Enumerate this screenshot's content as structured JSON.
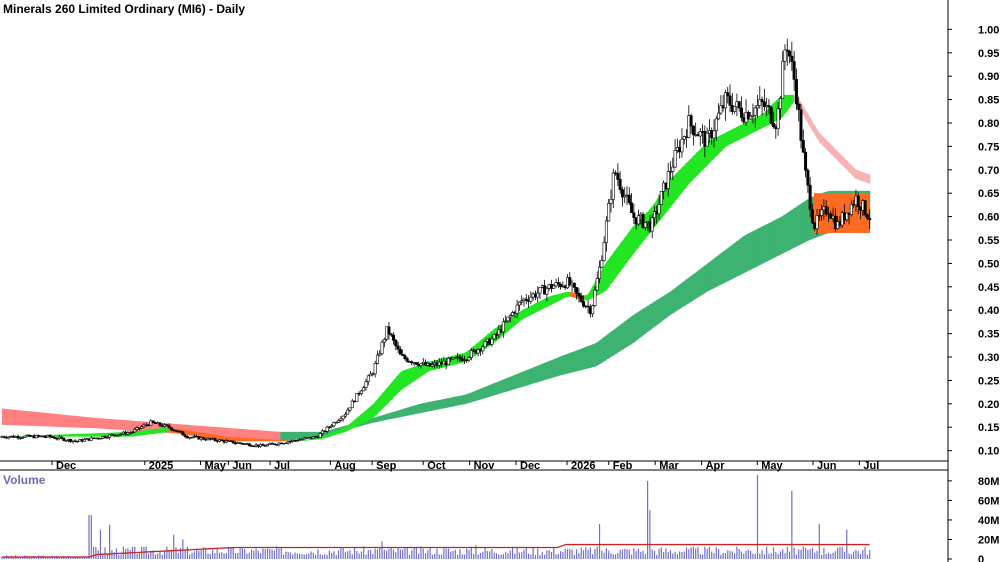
{
  "colors": {
    "up_band": "#22e622",
    "down_band": "#ff6a22",
    "long_up_band": "#3cb371",
    "long_down_band": "#ff8080",
    "long_down_band_light": "#f6b4b4",
    "volume_bar": "#7070c8",
    "volume_ma": "#cc2222",
    "volume_label": "#6b6bb8",
    "axis": "#000000"
  },
  "chart_data": {
    "type": "candlestick",
    "title": "Minerals 260 Limited Ordinary (MI6) - Daily",
    "y_axis": {
      "side": "right",
      "ticks": [
        "1.00",
        "0.95",
        "0.90",
        "0.85",
        "0.80",
        "0.75",
        "0.70",
        "0.65",
        "0.60",
        "0.55",
        "0.50",
        "0.45",
        "0.40",
        "0.35",
        "0.30",
        "0.25",
        "0.20",
        "0.15",
        "0.10"
      ],
      "ylim": [
        0.08,
        1.02
      ]
    },
    "x_axis": {
      "labels": [
        "Dec",
        "2025",
        "May",
        "Jun",
        "Jul",
        "Aug",
        "Sep",
        "Oct",
        "Nov",
        "Dec",
        "2026",
        "Feb",
        "Mar",
        "Apr",
        "May",
        "Jun",
        "Jul"
      ],
      "label_index": [
        0,
        0.1,
        0.16,
        0.19,
        0.235,
        0.3,
        0.345,
        0.4,
        0.45,
        0.5,
        0.555,
        0.6,
        0.65,
        0.7,
        0.76,
        0.82,
        0.87
      ]
    },
    "price_path": [
      [
        0,
        0.13
      ],
      [
        0.05,
        0.13
      ],
      [
        0.08,
        0.12
      ],
      [
        0.11,
        0.13
      ],
      [
        0.14,
        0.14
      ],
      [
        0.16,
        0.16
      ],
      [
        0.18,
        0.15
      ],
      [
        0.2,
        0.13
      ],
      [
        0.24,
        0.12
      ],
      [
        0.28,
        0.11
      ],
      [
        0.31,
        0.12
      ],
      [
        0.34,
        0.13
      ],
      [
        0.37,
        0.18
      ],
      [
        0.4,
        0.27
      ],
      [
        0.415,
        0.36
      ],
      [
        0.43,
        0.3
      ],
      [
        0.46,
        0.28
      ],
      [
        0.5,
        0.3
      ],
      [
        0.53,
        0.34
      ],
      [
        0.56,
        0.42
      ],
      [
        0.59,
        0.45
      ],
      [
        0.61,
        0.46
      ],
      [
        0.62,
        0.43
      ],
      [
        0.635,
        0.4
      ],
      [
        0.645,
        0.5
      ],
      [
        0.66,
        0.7
      ],
      [
        0.68,
        0.6
      ],
      [
        0.7,
        0.58
      ],
      [
        0.72,
        0.7
      ],
      [
        0.74,
        0.8
      ],
      [
        0.76,
        0.76
      ],
      [
        0.78,
        0.85
      ],
      [
        0.8,
        0.82
      ],
      [
        0.82,
        0.84
      ],
      [
        0.835,
        0.8
      ],
      [
        0.845,
        0.98
      ],
      [
        0.855,
        0.88
      ],
      [
        0.865,
        0.7
      ],
      [
        0.875,
        0.58
      ],
      [
        0.89,
        0.62
      ],
      [
        0.9,
        0.58
      ],
      [
        0.92,
        0.64
      ],
      [
        0.935,
        0.6
      ]
    ],
    "short_ema_band": {
      "upper": [
        [
          0,
          0.13
        ],
        [
          0.14,
          0.14
        ],
        [
          0.18,
          0.15
        ],
        [
          0.24,
          0.13
        ],
        [
          0.32,
          0.12
        ],
        [
          0.345,
          0.13
        ],
        [
          0.37,
          0.15
        ],
        [
          0.4,
          0.2
        ],
        [
          0.43,
          0.27
        ],
        [
          0.46,
          0.29
        ],
        [
          0.5,
          0.31
        ],
        [
          0.53,
          0.36
        ],
        [
          0.56,
          0.4
        ],
        [
          0.59,
          0.43
        ],
        [
          0.61,
          0.44
        ],
        [
          0.63,
          0.43
        ],
        [
          0.65,
          0.5
        ],
        [
          0.68,
          0.58
        ],
        [
          0.7,
          0.62
        ],
        [
          0.72,
          0.68
        ],
        [
          0.74,
          0.72
        ],
        [
          0.76,
          0.76
        ],
        [
          0.78,
          0.78
        ],
        [
          0.8,
          0.8
        ],
        [
          0.82,
          0.82
        ],
        [
          0.84,
          0.86
        ],
        [
          0.855,
          0.86
        ],
        [
          0.865,
          0.83
        ],
        [
          0.88,
          0.78
        ],
        [
          0.9,
          0.74
        ],
        [
          0.92,
          0.7
        ],
        [
          0.935,
          0.69
        ]
      ],
      "lower": [
        [
          0,
          0.13
        ],
        [
          0.14,
          0.13
        ],
        [
          0.18,
          0.14
        ],
        [
          0.24,
          0.12
        ],
        [
          0.32,
          0.12
        ],
        [
          0.345,
          0.125
        ],
        [
          0.37,
          0.14
        ],
        [
          0.4,
          0.17
        ],
        [
          0.43,
          0.23
        ],
        [
          0.46,
          0.27
        ],
        [
          0.5,
          0.29
        ],
        [
          0.53,
          0.33
        ],
        [
          0.56,
          0.38
        ],
        [
          0.59,
          0.41
        ],
        [
          0.61,
          0.43
        ],
        [
          0.63,
          0.42
        ],
        [
          0.65,
          0.44
        ],
        [
          0.68,
          0.52
        ],
        [
          0.7,
          0.57
        ],
        [
          0.72,
          0.62
        ],
        [
          0.74,
          0.67
        ],
        [
          0.76,
          0.71
        ],
        [
          0.78,
          0.75
        ],
        [
          0.8,
          0.77
        ],
        [
          0.82,
          0.79
        ],
        [
          0.84,
          0.81
        ],
        [
          0.855,
          0.85
        ],
        [
          0.865,
          0.81
        ],
        [
          0.88,
          0.76
        ],
        [
          0.9,
          0.72
        ],
        [
          0.92,
          0.68
        ],
        [
          0.935,
          0.67
        ]
      ]
    },
    "long_ema_band": {
      "upper": [
        [
          0,
          0.19
        ],
        [
          0.1,
          0.17
        ],
        [
          0.2,
          0.155
        ],
        [
          0.3,
          0.14
        ],
        [
          0.345,
          0.14
        ],
        [
          0.4,
          0.17
        ],
        [
          0.45,
          0.2
        ],
        [
          0.5,
          0.22
        ],
        [
          0.55,
          0.26
        ],
        [
          0.6,
          0.3
        ],
        [
          0.64,
          0.33
        ],
        [
          0.68,
          0.39
        ],
        [
          0.72,
          0.44
        ],
        [
          0.76,
          0.5
        ],
        [
          0.8,
          0.56
        ],
        [
          0.84,
          0.6
        ],
        [
          0.87,
          0.64
        ],
        [
          0.89,
          0.655
        ],
        [
          0.935,
          0.655
        ]
      ],
      "lower": [
        [
          0,
          0.155
        ],
        [
          0.1,
          0.148
        ],
        [
          0.2,
          0.135
        ],
        [
          0.3,
          0.12
        ],
        [
          0.345,
          0.13
        ],
        [
          0.4,
          0.16
        ],
        [
          0.45,
          0.18
        ],
        [
          0.5,
          0.2
        ],
        [
          0.55,
          0.23
        ],
        [
          0.6,
          0.26
        ],
        [
          0.64,
          0.28
        ],
        [
          0.68,
          0.33
        ],
        [
          0.72,
          0.39
        ],
        [
          0.76,
          0.44
        ],
        [
          0.8,
          0.48
        ],
        [
          0.84,
          0.52
        ],
        [
          0.87,
          0.55
        ],
        [
          0.89,
          0.565
        ],
        [
          0.935,
          0.565
        ]
      ]
    },
    "volume": {
      "label": "Volume",
      "ticks": [
        "80M",
        "60M",
        "40M",
        "20M",
        "0"
      ],
      "ylim": [
        0,
        85
      ],
      "spikes": [
        [
          0.095,
          45
        ],
        [
          0.105,
          30
        ],
        [
          0.115,
          35
        ],
        [
          0.185,
          25
        ],
        [
          0.195,
          20
        ],
        [
          0.41,
          18
        ],
        [
          0.51,
          14
        ],
        [
          0.645,
          36
        ],
        [
          0.695,
          80
        ],
        [
          0.697,
          50
        ],
        [
          0.815,
          86
        ],
        [
          0.85,
          70
        ],
        [
          0.88,
          36
        ],
        [
          0.91,
          30
        ]
      ],
      "base_early": 3,
      "base_late": 10,
      "ma_start": 2,
      "ma_end": 16
    }
  }
}
